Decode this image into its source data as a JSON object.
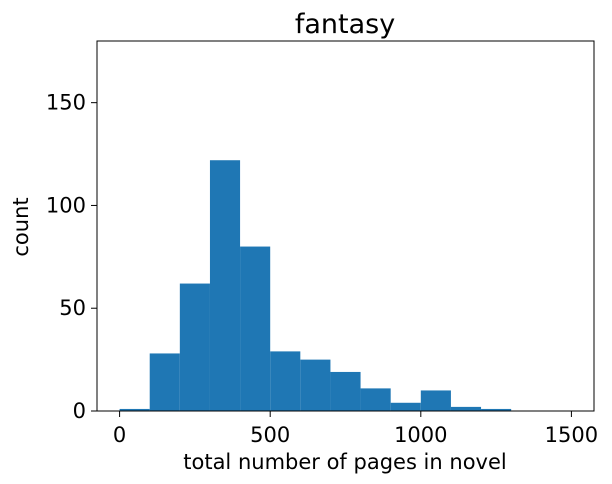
{
  "chart_data": {
    "type": "histogram",
    "title": "fantasy",
    "xlabel": "total number of pages in novel",
    "ylabel": "count",
    "bin_width": 100,
    "bins": [
      {
        "x0": 0,
        "x1": 100,
        "count": 1
      },
      {
        "x0": 100,
        "x1": 200,
        "count": 28
      },
      {
        "x0": 200,
        "x1": 300,
        "count": 62
      },
      {
        "x0": 300,
        "x1": 400,
        "count": 122
      },
      {
        "x0": 400,
        "x1": 500,
        "count": 80
      },
      {
        "x0": 500,
        "x1": 600,
        "count": 29
      },
      {
        "x0": 600,
        "x1": 700,
        "count": 25
      },
      {
        "x0": 700,
        "x1": 800,
        "count": 19
      },
      {
        "x0": 800,
        "x1": 900,
        "count": 11
      },
      {
        "x0": 900,
        "x1": 1000,
        "count": 4
      },
      {
        "x0": 1000,
        "x1": 1100,
        "count": 10
      },
      {
        "x0": 1100,
        "x1": 1200,
        "count": 2
      },
      {
        "x0": 1200,
        "x1": 1300,
        "count": 1
      },
      {
        "x0": 1300,
        "x1": 1400,
        "count": 0
      },
      {
        "x0": 1400,
        "x1": 1500,
        "count": 0
      }
    ],
    "xlim": [
      -75,
      1575
    ],
    "ylim": [
      0,
      180
    ],
    "xticks": [
      0,
      500,
      1000,
      1500
    ],
    "yticks": [
      0,
      50,
      100,
      150
    ],
    "bar_color": "#1f77b4",
    "grid": false,
    "legend": "none"
  }
}
